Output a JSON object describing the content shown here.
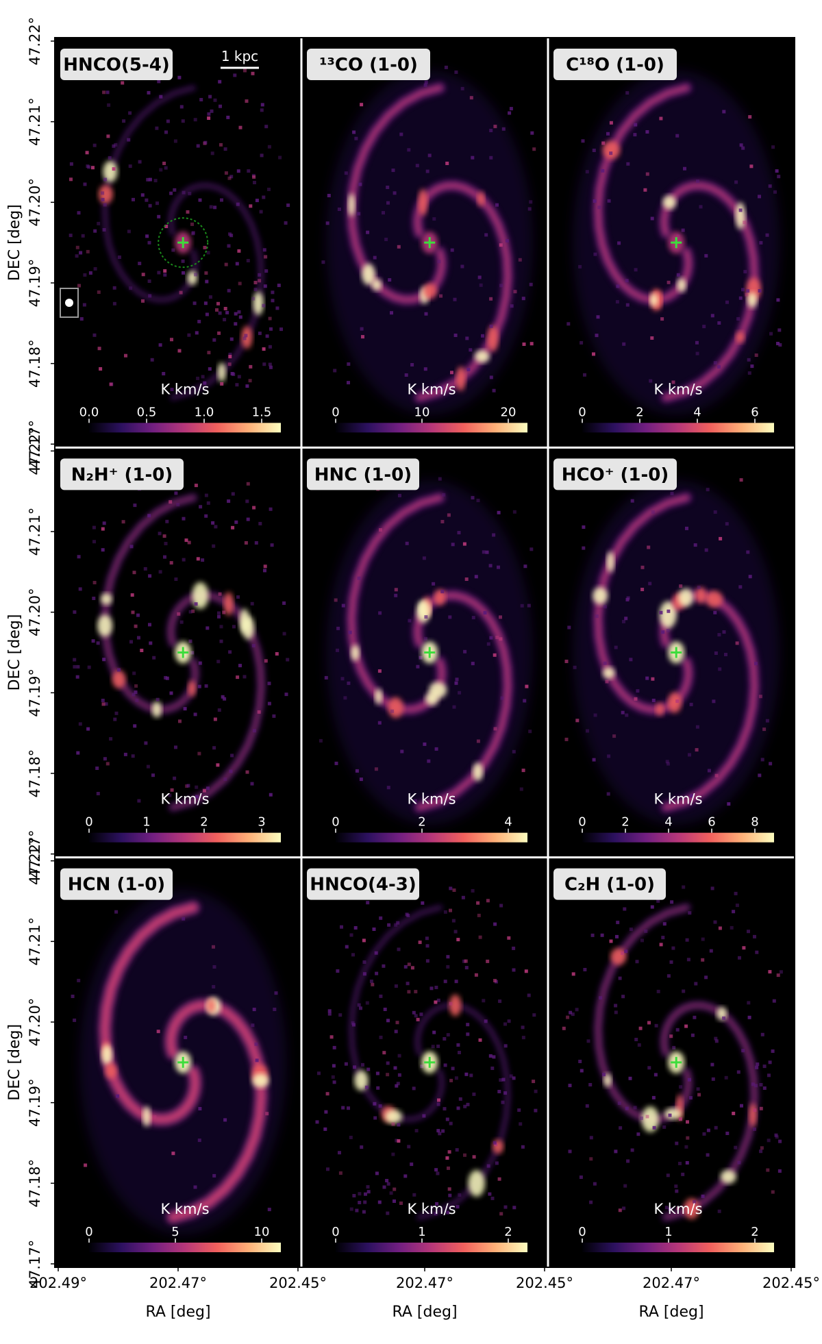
{
  "colorbar_unit": "K km/s",
  "scalebar_label": "1 kpc",
  "colors": {
    "background": "#000000",
    "panel_separator": "#ffffff",
    "label_box": "#e6e6e6",
    "center_marker": "#3ddc3d",
    "colormap": [
      "#000004",
      "#2c115f",
      "#721f81",
      "#b73779",
      "#f1605d",
      "#feb078",
      "#fcfdbf"
    ]
  },
  "axes": {
    "xlabel": "RA [deg]",
    "ylabel": "DEC [deg]",
    "x_ticks": [
      "202.49°",
      "202.47°",
      "202.45°"
    ],
    "y_ticks": [
      "47.22°",
      "47.21°",
      "47.20°",
      "47.19°",
      "47.18°",
      "47.17°"
    ]
  },
  "panels": [
    {
      "title": "HNCO(5-4)",
      "colorbar_ticks": [
        "0.0",
        "0.5",
        "1.0",
        "1.5"
      ],
      "style": "sparse"
    },
    {
      "title": "¹³CO (1-0)",
      "colorbar_ticks": [
        "0",
        "10",
        "20"
      ],
      "style": "spiral"
    },
    {
      "title": "C¹⁸O (1-0)",
      "colorbar_ticks": [
        "0",
        "2",
        "4",
        "6"
      ],
      "style": "spiral"
    },
    {
      "title": "N₂H⁺ (1-0)",
      "colorbar_ticks": [
        "0",
        "1",
        "2",
        "3"
      ],
      "style": "medium"
    },
    {
      "title": "HNC (1-0)",
      "colorbar_ticks": [
        "0",
        "2",
        "4"
      ],
      "style": "spiral"
    },
    {
      "title": "HCO⁺ (1-0)",
      "colorbar_ticks": [
        "0",
        "2",
        "4",
        "6",
        "8"
      ],
      "style": "spiral"
    },
    {
      "title": "HCN (1-0)",
      "colorbar_ticks": [
        "0",
        "5",
        "10"
      ],
      "style": "smooth"
    },
    {
      "title": "HNCO(4-3)",
      "colorbar_ticks": [
        "0",
        "1",
        "2"
      ],
      "style": "sparse"
    },
    {
      "title": "C₂H (1-0)",
      "colorbar_ticks": [
        "0",
        "1",
        "2"
      ],
      "style": "medium"
    }
  ]
}
